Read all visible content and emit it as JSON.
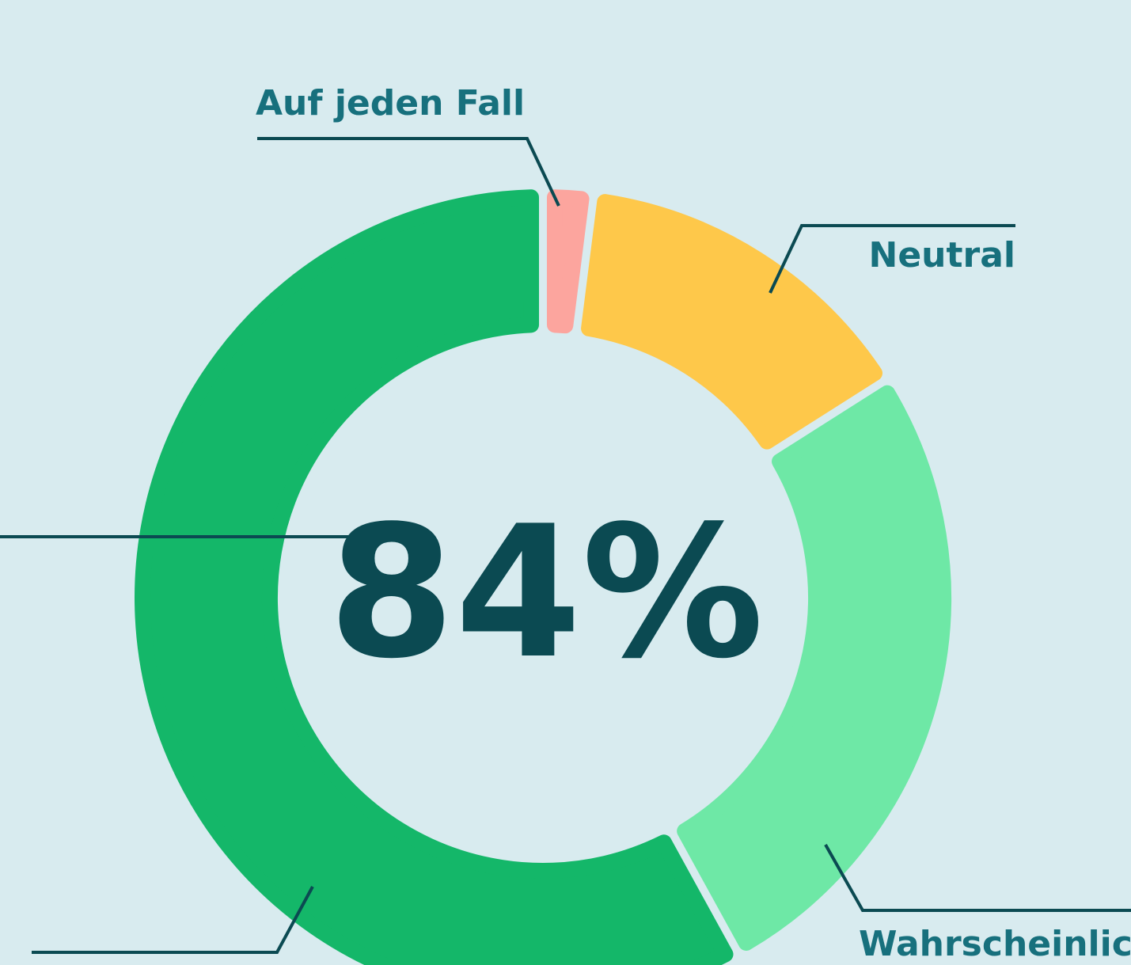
{
  "chart_data": {
    "type": "donut",
    "annotation": "84%",
    "categories": [
      "Auf jeden Fall",
      "Neutral",
      "Wahrscheinlich",
      null
    ],
    "values": [
      2,
      14,
      26,
      58
    ],
    "colors": [
      "#fca59e",
      "#fec84a",
      "#6ee8a6",
      "#14b769"
    ]
  }
}
